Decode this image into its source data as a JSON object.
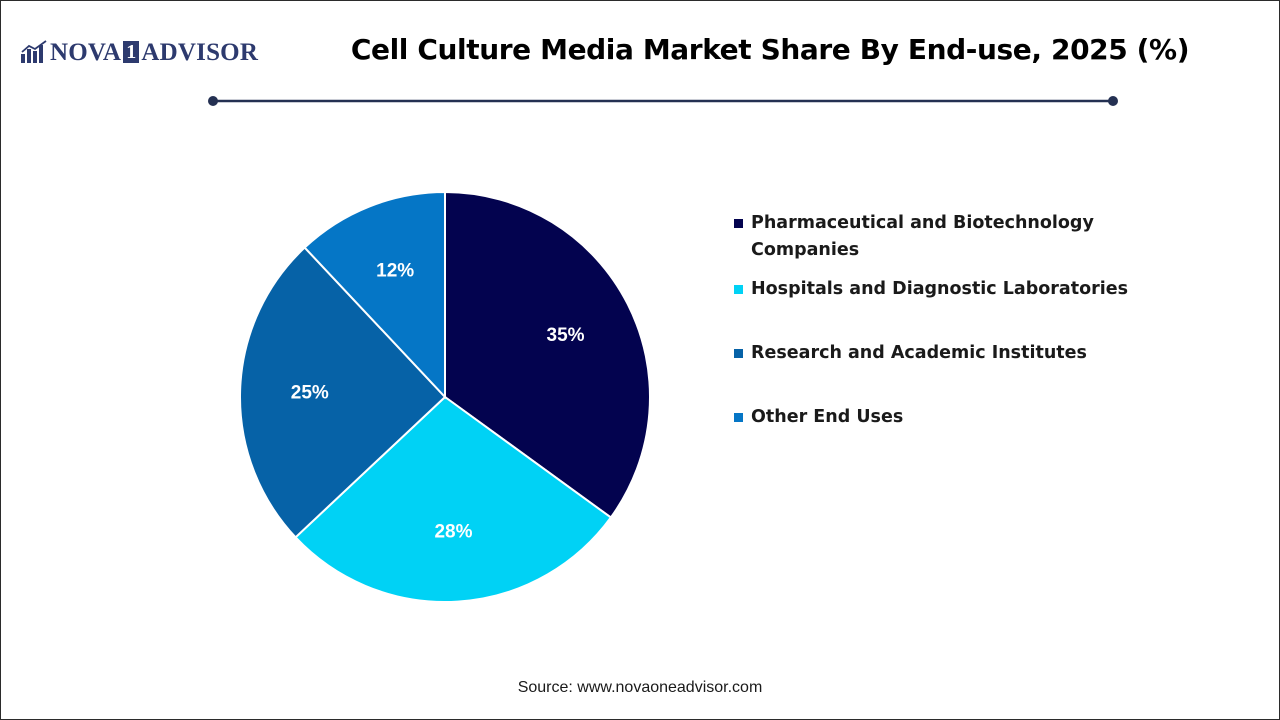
{
  "logo": {
    "part1": "NOVA",
    "box": "1",
    "part2": "ADVISOR",
    "icon": "bar-chart-icon",
    "color": "#2d3a6e"
  },
  "header": {
    "title": "Cell Culture Media Market Share By End-use, 2025 (%)",
    "divider_color": "#243052"
  },
  "chart_data": {
    "type": "pie",
    "title": "Cell Culture Media Market Share By End-use, 2025 (%)",
    "categories": [
      "Pharmaceutical and Biotechnology Companies",
      "Hospitals and Diagnostic Laboratories",
      "Research and Academic Institutes",
      "Other End Uses"
    ],
    "values": [
      35,
      28,
      25,
      12
    ],
    "labels": [
      "35%",
      "28%",
      "25%",
      "12%"
    ],
    "colors": [
      "#03034f",
      "#00d2f5",
      "#0662a7",
      "#0576c6"
    ],
    "start_angle_deg": 0,
    "direction": "clockwise",
    "legend_position": "right"
  },
  "source": "Source: www.novaoneadvisor.com"
}
